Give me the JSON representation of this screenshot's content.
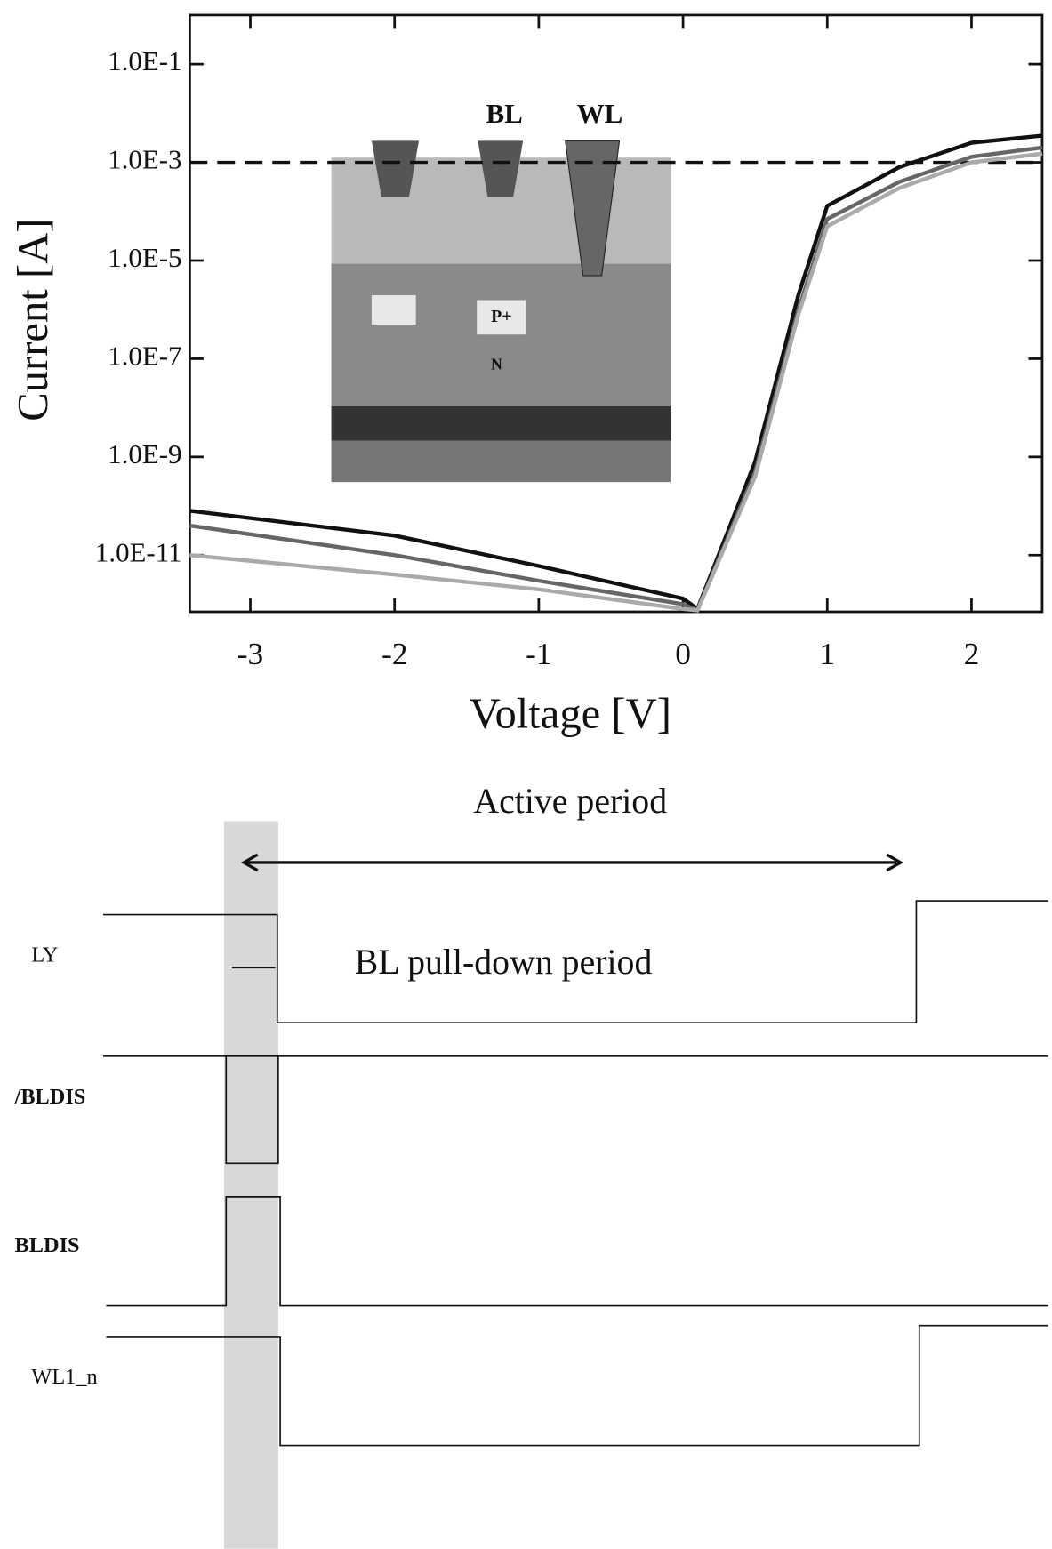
{
  "chart_data": {
    "type": "line",
    "xlabel": "Voltage [V]",
    "ylabel": "Current [A]",
    "xlim": [
      -3.42,
      2.49
    ],
    "xticks": [
      -3,
      -2,
      -1,
      0,
      1,
      2
    ],
    "ylim": [
      7e-13,
      1
    ],
    "log_y": true,
    "yticks": [
      {
        "value": 0.1,
        "label": "1.0E-1"
      },
      {
        "value": 0.001,
        "label": "1.0E-3"
      },
      {
        "value": 1e-05,
        "label": "1.0E-5"
      },
      {
        "value": 1e-07,
        "label": "1.0E-7"
      },
      {
        "value": 1e-09,
        "label": "1.0E-9"
      },
      {
        "value": 1e-11,
        "label": "1.0E-11"
      }
    ],
    "hline": 0.001,
    "x": [
      -3.42,
      -2,
      -1,
      0,
      0.1,
      0.5,
      0.8,
      1,
      1.5,
      2,
      2.49
    ],
    "series": [
      {
        "color": "#111111",
        "values": [
          8e-11,
          2.5e-11,
          6e-12,
          1.3e-12,
          8e-13,
          8e-10,
          2e-06,
          0.00013,
          0.0008,
          0.0025,
          0.0035
        ]
      },
      {
        "color": "#666666",
        "values": [
          4e-11,
          1e-11,
          3e-12,
          1e-12,
          7.5e-13,
          5e-10,
          1e-06,
          7e-05,
          0.0004,
          0.0013,
          0.002
        ]
      },
      {
        "color": "#aaaaaa",
        "values": [
          1e-11,
          4e-12,
          2e-12,
          8e-13,
          7.5e-13,
          4e-10,
          8e-07,
          5e-05,
          0.0003,
          0.001,
          0.0015
        ]
      }
    ],
    "inset_labels": [
      "BL",
      "WL",
      "P+",
      "N"
    ]
  },
  "timing_diagram": {
    "top_label": "Active period",
    "sub_label": "BL pull-down period",
    "signals": [
      "LY",
      "/BLDIS",
      "BLDIS",
      "WL1_n"
    ]
  }
}
